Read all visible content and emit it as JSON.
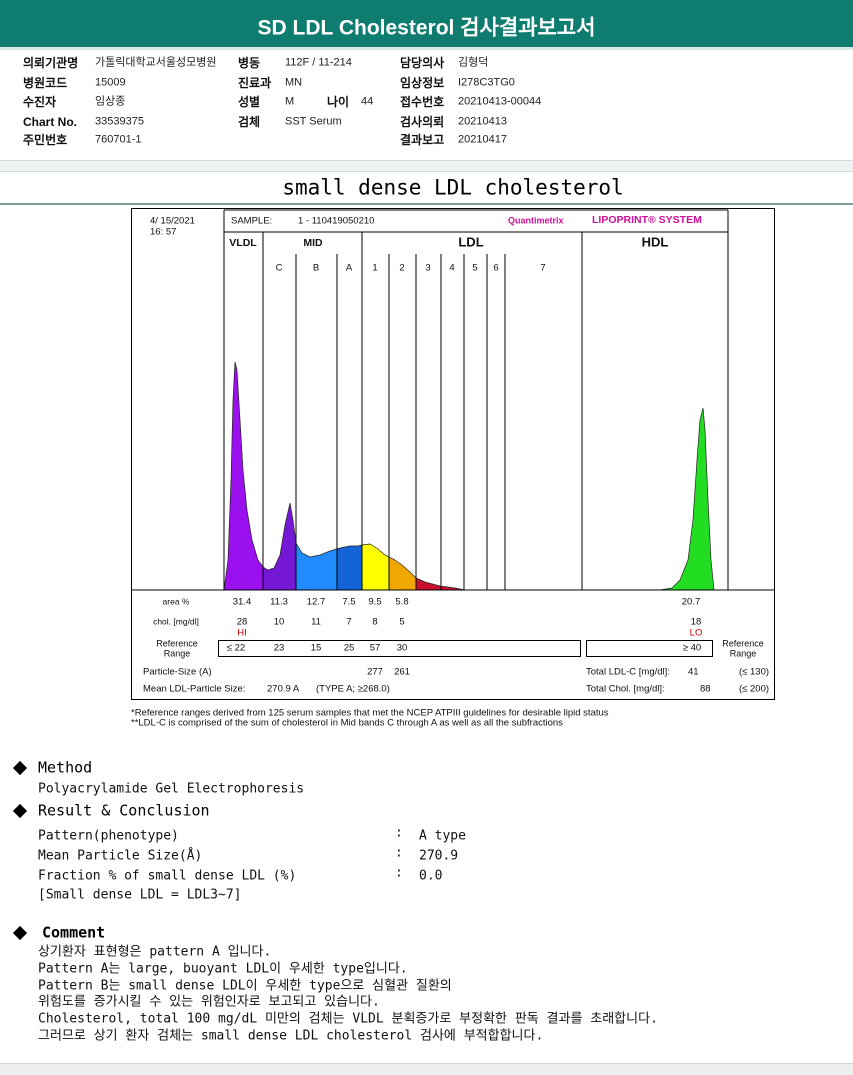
{
  "header": {
    "title": "SD LDL Cholesterol 검사결과보고서"
  },
  "info": {
    "rows": [
      [
        {
          "label": "의뢰기관명",
          "value": "가톨릭대학교서울성모병원"
        },
        {
          "label": "병동",
          "value": "112F / 11-214"
        },
        {
          "label": "담당의사",
          "value": "김형덕"
        }
      ],
      [
        {
          "label": "병원코드",
          "value": "15009"
        },
        {
          "label": "진료과",
          "value": "MN"
        },
        {
          "label": "임상정보",
          "value": "I278C3TG0"
        }
      ],
      [
        {
          "label": "수진자",
          "value": "임상종"
        },
        {
          "label": "성별",
          "value": "M"
        },
        {
          "label": "나이",
          "value": "44"
        },
        {
          "label": "접수번호",
          "value": "20210413-00044"
        }
      ],
      [
        {
          "label": "Chart No.",
          "value": "33539375"
        },
        {
          "label": "검체",
          "value": "SST Serum"
        },
        {
          "label": "검사의뢰",
          "value": "20210413"
        }
      ],
      [
        {
          "label": "주민번호",
          "value": "760701-1"
        },
        {
          "label": "결과보고",
          "value": "20210417"
        }
      ]
    ]
  },
  "section_title": "small dense LDL cholesterol",
  "lipoprint": {
    "date": "4/ 15/2021",
    "time": "16: 57",
    "sample_label": "SAMPLE:",
    "sample_id": "1 - 110419050210",
    "brand": "Quantimetrix",
    "system": "LIPOPRINT® SYSTEM",
    "groups": [
      "VLDL",
      "MID",
      "LDL",
      "HDL"
    ],
    "bands": [
      "C",
      "B",
      "A",
      "1",
      "2",
      "3",
      "4",
      "5",
      "6",
      "7"
    ],
    "area": {
      "label": "area %",
      "values": [
        "31.4",
        "11.3",
        "12.7",
        "7.5",
        "9.5",
        "5.8"
      ],
      "hdl": "20.7"
    },
    "chol": {
      "label": "chol. [mg/dl]",
      "values": [
        "28",
        "10",
        "11",
        "7",
        "8",
        "5"
      ],
      "hdl": "18",
      "vldl_flag": "HI",
      "hdl_flag": "LO"
    },
    "reference": {
      "label": [
        "Reference",
        "Range"
      ],
      "values": [
        "≤ 22",
        "23",
        "15",
        "25",
        "57",
        "30"
      ],
      "hdl": "≥ 40",
      "right_label": [
        "Reference",
        "Range"
      ]
    },
    "particle_size": {
      "label": "Particle-Size (A)",
      "values": [
        "277",
        "261"
      ]
    },
    "mean_size": {
      "label": "Mean LDL-Particle Size:",
      "value": "270.9 A",
      "type": "(TYPE A; ≥268.0)"
    },
    "total_ldl": {
      "label": "Total LDL-C [mg/dl]:",
      "value": "41",
      "limit": "(≤ 130)"
    },
    "total_chol": {
      "label": "Total Chol. [mg/dl]:",
      "value": "88",
      "limit": "(≤ 200)"
    }
  },
  "footnotes": [
    "*Reference ranges derived from 125 serum samples that met the NCEP ATPIII guidelines for desirable lipid status",
    "**LDL-C is comprised of the sum of cholesterol in Mid bands C through A as well as all the subfractions"
  ],
  "method": {
    "heading": "Method",
    "text": "Polyacrylamide Gel Electrophoresis"
  },
  "result": {
    "heading": "Result & Conclusion",
    "rows": [
      {
        "label": "Pattern(phenotype)",
        "separator": ":",
        "value": "A type"
      },
      {
        "label": "Mean Particle Size(Å)",
        "separator": ":",
        "value": "270.9"
      },
      {
        "label": "Fraction % of small dense LDL (%)",
        "separator": ":",
        "value": "0.0"
      }
    ],
    "note": "[Small dense LDL = LDL3~7]"
  },
  "comment": {
    "heading": "Comment",
    "lines": [
      "상기환자 표현형은 pattern A 입니다.",
      "Pattern A는 large, buoyant LDL이 우세한 type입니다.",
      "Pattern B는 small dense LDL이 우세한 type으로 심혈관 질환의",
      "위험도를 증가시킬 수 있는 위험인자로 보고되고 있습니다.",
      "Cholesterol, total 100 mg/dL 미만의 검체는 VLDL 분획증가로 부정확한 판독 결과를 초래합니다.",
      "그러므로 상기 환자 검체는 small dense LDL cholesterol 검사에 부적합합니다."
    ]
  }
}
